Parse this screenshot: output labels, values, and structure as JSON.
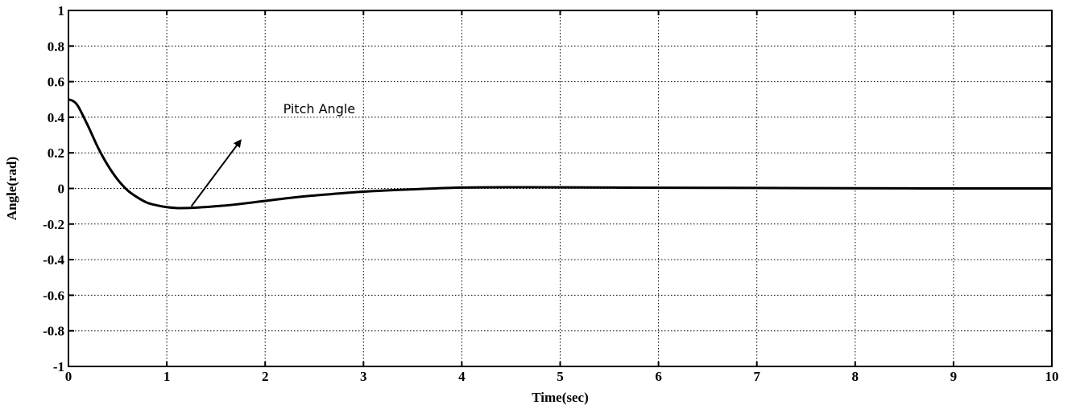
{
  "chart_data": {
    "type": "line",
    "title": "",
    "xlabel": "Time(sec)",
    "ylabel": "Angle(rad)",
    "xlim": [
      0,
      10
    ],
    "ylim": [
      -1,
      1
    ],
    "xticks": [
      0,
      1,
      2,
      3,
      4,
      5,
      6,
      7,
      8,
      9,
      10
    ],
    "yticks": [
      -1,
      -0.8,
      -0.6,
      -0.4,
      -0.2,
      0,
      0.2,
      0.4,
      0.6,
      0.8,
      1
    ],
    "grid": true,
    "series": [
      {
        "x": [
          0,
          0.05,
          0.1,
          0.2,
          0.3,
          0.4,
          0.5,
          0.6,
          0.7,
          0.8,
          0.9,
          1.0,
          1.1,
          1.2,
          1.3,
          1.5,
          1.7,
          2.0,
          2.3,
          2.6,
          3.0,
          3.5,
          4.0,
          4.5,
          5.0,
          6.0,
          7.0,
          8.0,
          9.0,
          10.0
        ],
        "y": [
          0.5,
          0.49,
          0.46,
          0.35,
          0.23,
          0.13,
          0.05,
          -0.01,
          -0.05,
          -0.08,
          -0.095,
          -0.105,
          -0.11,
          -0.11,
          -0.108,
          -0.1,
          -0.09,
          -0.07,
          -0.05,
          -0.035,
          -0.018,
          -0.005,
          0.005,
          0.007,
          0.006,
          0.004,
          0.003,
          0.001,
          0.0,
          0.0
        ]
      }
    ],
    "annotations": [
      {
        "text": "Pitch Angle",
        "arrow_from": [
          1.25,
          -0.1
        ],
        "arrow_to": [
          1.75,
          0.27
        ],
        "text_at": [
          2.55,
          0.45
        ]
      }
    ],
    "color": "#000000"
  }
}
